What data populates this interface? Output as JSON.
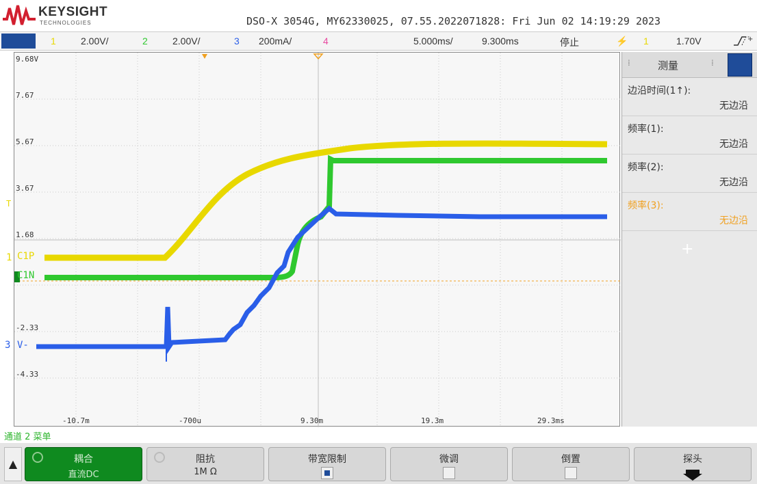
{
  "brand": {
    "name": "KEYSIGHT",
    "sub": "TECHNOLOGIES"
  },
  "info": "DSO-X 3054G, MY62330025, 07.55.2022071828: Fri Jun 02 14:19:29 2023",
  "status": {
    "ch1_num": "1",
    "ch1_scale": "2.00V/",
    "ch2_num": "2",
    "ch2_scale": "2.00V/",
    "ch3_num": "3",
    "ch3_scale": "200mA/",
    "ch4_num": "4",
    "timebase": "5.000ms/",
    "delay": "9.300ms",
    "run_state": "停止",
    "trig_src": "1",
    "trig_level": "1.70V"
  },
  "screen": {
    "y_labels": [
      "9.68V",
      "7.67",
      "5.67",
      "3.67",
      "1.68",
      "-2.33",
      "-4.33"
    ],
    "x_labels": [
      "-10.7m",
      "-700u",
      "9.30m",
      "19.3m",
      "29.3ms"
    ],
    "ch1_marker": "C1P",
    "ch2_marker": "C1N",
    "ch3_marker": "V-",
    "ch1_num": "1",
    "ch2_num": "2",
    "ch3_num": "3",
    "trig_t": "T"
  },
  "measure": {
    "title": "测量",
    "rows": [
      {
        "label": "边沿时间(1↑):",
        "value": "无边沿"
      },
      {
        "label": "频率(1):",
        "value": "无边沿"
      },
      {
        "label": "频率(2):",
        "value": "无边沿"
      },
      {
        "label": "频率(3):",
        "value": "无边沿"
      }
    ],
    "add": "+"
  },
  "channel_menu": {
    "title": "通道 2 菜单"
  },
  "softkeys": [
    {
      "label": "耦合",
      "value": "直流DC"
    },
    {
      "label": "阻抗",
      "value": "1M Ω"
    },
    {
      "label": "带宽限制",
      "value": ""
    },
    {
      "label": "微调",
      "value": ""
    },
    {
      "label": "倒置",
      "value": ""
    },
    {
      "label": "探头",
      "value": ""
    }
  ],
  "colors": {
    "ch1": "#e8d800",
    "ch2": "#2fc82f",
    "ch3": "#2a5ee8",
    "ch4": "#e84aa0",
    "trigger": "#f0a020"
  }
}
